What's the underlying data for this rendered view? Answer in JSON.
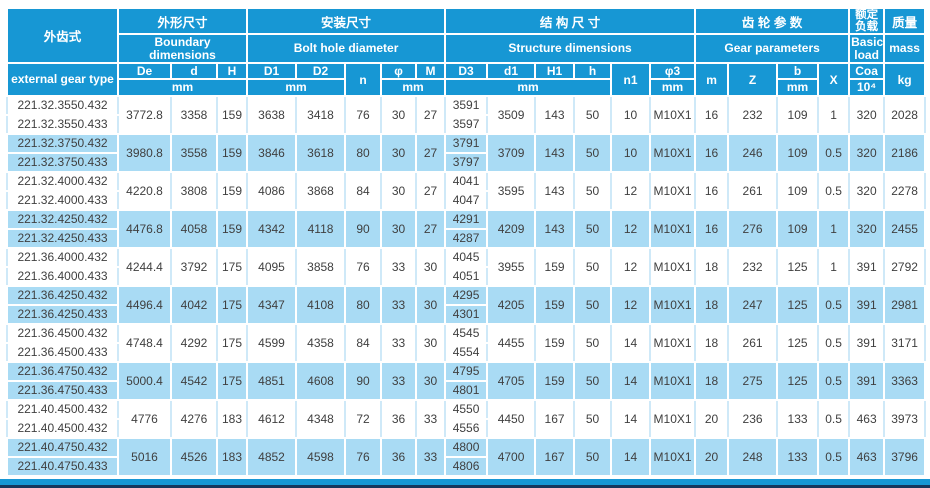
{
  "colors": {
    "header_blue": "#1797d4",
    "shaded_row_blue": "#a9dbf4",
    "bottom_navy": "#16365c"
  },
  "header": {
    "type_zh": "外齿式",
    "type_en": "external gear type",
    "groups": {
      "boundary": {
        "zh": "外形尺寸",
        "en": "Boundary dimensions"
      },
      "bolt": {
        "zh": "安装尺寸",
        "en": "Bolt hole diameter"
      },
      "structure": {
        "zh": "结 构 尺 寸",
        "en": "Structure dimensions"
      },
      "gear": {
        "zh": "齿 轮 参 数",
        "en": "Gear parameters"
      },
      "load": {
        "zh": "额定负载",
        "en": "Basic load"
      },
      "mass": {
        "zh": "质量",
        "en": "mass"
      }
    },
    "symbols": {
      "De": "De",
      "d": "d",
      "H": "H",
      "D1": "D1",
      "D2": "D2",
      "n": "n",
      "phi": "φ",
      "M": "M",
      "D3": "D3",
      "d1": "d1",
      "H1": "H1",
      "h": "h",
      "n1": "n1",
      "phi3": "φ3",
      "m": "m",
      "Z": "Z",
      "b": "b",
      "X": "X",
      "Coa": "Coa",
      "Coa_unit": "10⁴",
      "kg": "kg",
      "mm": "mm"
    }
  },
  "rows": [
    {
      "types": [
        "221.32.3550.432",
        "221.32.3550.433"
      ],
      "De": "3772.8",
      "d": "3358",
      "H": "159",
      "D1": "3638",
      "D2": "3418",
      "n": "76",
      "phi": "30",
      "M": "27",
      "D3": [
        "3591",
        "3597"
      ],
      "d1": "3509",
      "H1": "143",
      "h": "50",
      "n1": "10",
      "phi3": "M10X1",
      "m": "16",
      "Z": "232",
      "b": "109",
      "X": "1",
      "Coa": "320",
      "mass": "2028",
      "shaded": false
    },
    {
      "types": [
        "221.32.3750.432",
        "221.32.3750.433"
      ],
      "De": "3980.8",
      "d": "3558",
      "H": "159",
      "D1": "3846",
      "D2": "3618",
      "n": "80",
      "phi": "30",
      "M": "27",
      "D3": [
        "3791",
        "3797"
      ],
      "d1": "3709",
      "H1": "143",
      "h": "50",
      "n1": "10",
      "phi3": "M10X1",
      "m": "16",
      "Z": "246",
      "b": "109",
      "X": "0.5",
      "Coa": "320",
      "mass": "2186",
      "shaded": true
    },
    {
      "types": [
        "221.32.4000.432",
        "221.32.4000.433"
      ],
      "De": "4220.8",
      "d": "3808",
      "H": "159",
      "D1": "4086",
      "D2": "3868",
      "n": "84",
      "phi": "30",
      "M": "27",
      "D3": [
        "4041",
        "4047"
      ],
      "d1": "3595",
      "H1": "143",
      "h": "50",
      "n1": "12",
      "phi3": "M10X1",
      "m": "16",
      "Z": "261",
      "b": "109",
      "X": "0.5",
      "Coa": "320",
      "mass": "2278",
      "shaded": false
    },
    {
      "types": [
        "221.32.4250.432",
        "221.32.4250.433"
      ],
      "De": "4476.8",
      "d": "4058",
      "H": "159",
      "D1": "4342",
      "D2": "4118",
      "n": "90",
      "phi": "30",
      "M": "27",
      "D3": [
        "4291",
        "4287"
      ],
      "d1": "4209",
      "H1": "143",
      "h": "50",
      "n1": "12",
      "phi3": "M10X1",
      "m": "16",
      "Z": "276",
      "b": "109",
      "X": "1",
      "Coa": "320",
      "mass": "2455",
      "shaded": true
    },
    {
      "types": [
        "221.36.4000.432",
        "221.36.4000.433"
      ],
      "De": "4244.4",
      "d": "3792",
      "H": "175",
      "D1": "4095",
      "D2": "3858",
      "n": "76",
      "phi": "33",
      "M": "30",
      "D3": [
        "4045",
        "4051"
      ],
      "d1": "3955",
      "H1": "159",
      "h": "50",
      "n1": "12",
      "phi3": "M10X1",
      "m": "18",
      "Z": "232",
      "b": "125",
      "X": "1",
      "Coa": "391",
      "mass": "2792",
      "shaded": false
    },
    {
      "types": [
        "221.36.4250.432",
        "221.36.4250.433"
      ],
      "De": "4496.4",
      "d": "4042",
      "H": "175",
      "D1": "4347",
      "D2": "4108",
      "n": "80",
      "phi": "33",
      "M": "30",
      "D3": [
        "4295",
        "4301"
      ],
      "d1": "4205",
      "H1": "159",
      "h": "50",
      "n1": "12",
      "phi3": "M10X1",
      "m": "18",
      "Z": "247",
      "b": "125",
      "X": "0.5",
      "Coa": "391",
      "mass": "2981",
      "shaded": true
    },
    {
      "types": [
        "221.36.4500.432",
        "221.36.4500.433"
      ],
      "De": "4748.4",
      "d": "4292",
      "H": "175",
      "D1": "4599",
      "D2": "4358",
      "n": "84",
      "phi": "33",
      "M": "30",
      "D3": [
        "4545",
        "4554"
      ],
      "d1": "4455",
      "H1": "159",
      "h": "50",
      "n1": "14",
      "phi3": "M10X1",
      "m": "18",
      "Z": "261",
      "b": "125",
      "X": "0.5",
      "Coa": "391",
      "mass": "3171",
      "shaded": false
    },
    {
      "types": [
        "221.36.4750.432",
        "221.36.4750.433"
      ],
      "De": "5000.4",
      "d": "4542",
      "H": "175",
      "D1": "4851",
      "D2": "4608",
      "n": "90",
      "phi": "33",
      "M": "30",
      "D3": [
        "4795",
        "4801"
      ],
      "d1": "4705",
      "H1": "159",
      "h": "50",
      "n1": "14",
      "phi3": "M10X1",
      "m": "18",
      "Z": "275",
      "b": "125",
      "X": "0.5",
      "Coa": "391",
      "mass": "3363",
      "shaded": true
    },
    {
      "types": [
        "221.40.4500.432",
        "221.40.4500.432"
      ],
      "De": "4776",
      "d": "4276",
      "H": "183",
      "D1": "4612",
      "D2": "4348",
      "n": "72",
      "phi": "36",
      "M": "33",
      "D3": [
        "4550",
        "4556"
      ],
      "d1": "4450",
      "H1": "167",
      "h": "50",
      "n1": "14",
      "phi3": "M10X1",
      "m": "20",
      "Z": "236",
      "b": "133",
      "X": "0.5",
      "Coa": "463",
      "mass": "3973",
      "shaded": false
    },
    {
      "types": [
        "221.40.4750.432",
        "221.40.4750.433"
      ],
      "De": "5016",
      "d": "4526",
      "H": "183",
      "D1": "4852",
      "D2": "4598",
      "n": "76",
      "phi": "36",
      "M": "33",
      "D3": [
        "4800",
        "4806"
      ],
      "d1": "4700",
      "H1": "167",
      "h": "50",
      "n1": "14",
      "phi3": "M10X1",
      "m": "20",
      "Z": "248",
      "b": "133",
      "X": "0.5",
      "Coa": "463",
      "mass": "3796",
      "shaded": true
    }
  ]
}
